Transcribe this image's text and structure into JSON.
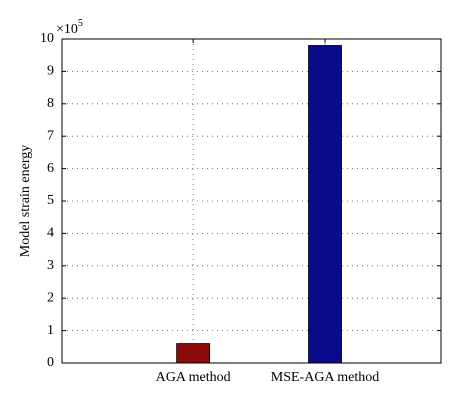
{
  "chart_data": {
    "type": "bar",
    "ylabel": "Model strain energy",
    "y_multiplier": {
      "base": "×10",
      "exponent": "5"
    },
    "categories": [
      "AGA method",
      "MSE-AGA method"
    ],
    "values": [
      0.6,
      9.8
    ],
    "colors": [
      "#8b0a0a",
      "#0a0a8c"
    ],
    "ylim": [
      0,
      10
    ],
    "yticks": [
      0,
      1,
      2,
      3,
      4,
      5,
      6,
      7,
      8,
      9,
      10
    ],
    "grid": true
  }
}
